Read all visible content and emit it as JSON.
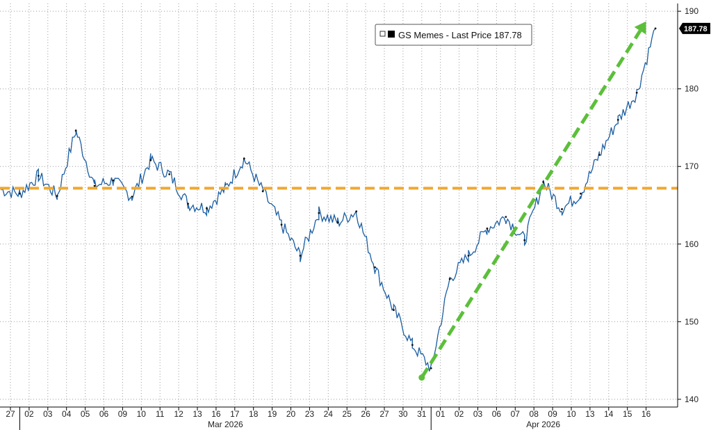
{
  "chart_data": {
    "type": "line",
    "title": "",
    "xlabel": "",
    "ylabel": "",
    "ylim": [
      139,
      191
    ],
    "yticks": [
      140,
      150,
      160,
      170,
      180,
      190
    ],
    "grid": true,
    "legend_position": "top-center",
    "legend": {
      "series_name": "GS Memes",
      "label": "Last Price",
      "value": "187.78"
    },
    "last_price_tag": "187.78",
    "x_day_labels": [
      "27",
      "02",
      "03",
      "04",
      "05",
      "06",
      "09",
      "10",
      "11",
      "12",
      "13",
      "16",
      "17",
      "18",
      "19",
      "20",
      "23",
      "24",
      "25",
      "26",
      "27",
      "30",
      "31",
      "01",
      "02",
      "03",
      "06",
      "07",
      "08",
      "09",
      "10",
      "13",
      "14",
      "15",
      "16"
    ],
    "x_month_labels": [
      {
        "label": "Mar 2026",
        "after_day_index": 0,
        "until_day_index": 22
      },
      {
        "label": "Apr 2026",
        "after_day_index": 22,
        "until_day_index": 34
      }
    ],
    "series": [
      {
        "name": "GS Memes",
        "color": "#1a6fc4",
        "daily_closes": [
          166.5,
          168.8,
          166.2,
          174.6,
          167.5,
          168.2,
          166.1,
          170.8,
          169.0,
          165.2,
          164.6,
          167.2,
          171.0,
          166.8,
          162.5,
          158.5,
          164.0,
          162.8,
          164.2,
          157.0,
          151.5,
          147.0,
          144.0,
          155.5,
          158.5,
          162.0,
          163.5,
          160.5,
          168.0,
          164.5,
          166.5,
          171.5,
          176.0,
          179.5,
          187.78
        ]
      }
    ],
    "reference_line": {
      "value": 167.2,
      "color": "#f0a830",
      "style": "dashed"
    },
    "trend_arrow": {
      "start": {
        "x": "31",
        "y": 142.8
      },
      "end": {
        "x": "16",
        "y": 188.7
      },
      "color": "#5cbf3a"
    }
  }
}
